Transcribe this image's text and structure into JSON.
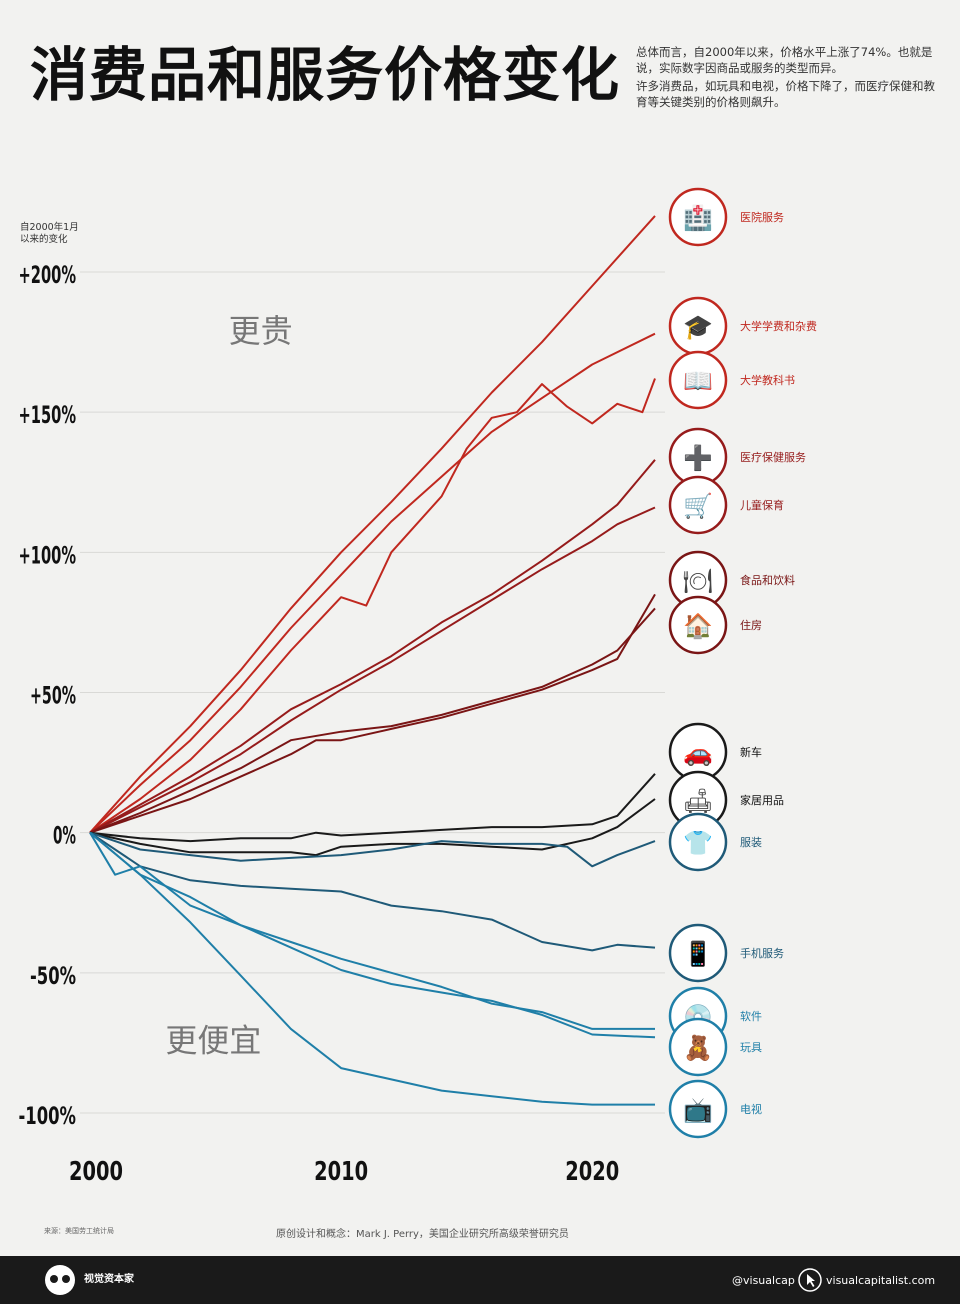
{
  "title": "消费品和服务价格变化",
  "subtitle": [
    "总体而言，自2000年以来，价格水平上涨了74%。也就是说，实际数字因商品或服务的类型而异。",
    "许多消费品，如玩具和电视，价格下降了，而医疗保健和教育等关键类别的价格则飙升。"
  ],
  "source": "来源：美国劳工统计局",
  "credit": "原创设计和概念：Mark J. Perry，美国企业研究所高级荣誉研究员",
  "footer": {
    "brand": "视觉资本家",
    "handle": "@visualcap",
    "site": "visualcapitalist.com"
  },
  "colors": {
    "red": "#c0281f",
    "darkred": "#7a1515",
    "black": "#1a1a1a",
    "teal": "#1f5a78",
    "blue": "#1f7fa8"
  },
  "chart_data": {
    "type": "line",
    "ylabel": "自2000年1月\n以来的变化",
    "ylim": [
      -100,
      200
    ],
    "yticks": [
      {
        "value": 200,
        "label": "+200%"
      },
      {
        "value": 150,
        "label": "+150%"
      },
      {
        "value": 100,
        "label": "+100%"
      },
      {
        "value": 50,
        "label": "+50%"
      },
      {
        "value": 0,
        "label": "0%"
      },
      {
        "value": -50,
        "label": "-50%"
      },
      {
        "value": -100,
        "label": "-100%"
      }
    ],
    "xticks": [
      {
        "value": 2000,
        "label": "2000"
      },
      {
        "value": 2010,
        "label": "2010"
      },
      {
        "value": 2020,
        "label": "2020"
      }
    ],
    "xlim": [
      2000,
      2022.5
    ],
    "annotations": [
      {
        "text": "更贵",
        "x": 2006,
        "y": 175
      },
      {
        "text": "更便宜",
        "x": 2003,
        "y": -78
      }
    ],
    "series": [
      {
        "name": "医院服务",
        "color": "#c0281f",
        "icon": "hospital-icon",
        "points": [
          [
            2000,
            0
          ],
          [
            2002,
            20
          ],
          [
            2004,
            38
          ],
          [
            2006,
            58
          ],
          [
            2008,
            80
          ],
          [
            2010,
            100
          ],
          [
            2012,
            118
          ],
          [
            2014,
            137
          ],
          [
            2016,
            157
          ],
          [
            2018,
            175
          ],
          [
            2020,
            195
          ],
          [
            2022.5,
            220
          ]
        ]
      },
      {
        "name": "大学学费和杂费",
        "color": "#c0281f",
        "icon": "graduation-cap-icon",
        "points": [
          [
            2000,
            0
          ],
          [
            2002,
            17
          ],
          [
            2004,
            33
          ],
          [
            2006,
            52
          ],
          [
            2008,
            73
          ],
          [
            2010,
            92
          ],
          [
            2012,
            111
          ],
          [
            2014,
            127
          ],
          [
            2016,
            143
          ],
          [
            2018,
            155
          ],
          [
            2020,
            167
          ],
          [
            2022.5,
            178
          ]
        ]
      },
      {
        "name": "大学教科书",
        "color": "#c0281f",
        "icon": "textbook-icon",
        "points": [
          [
            2000,
            0
          ],
          [
            2002,
            12
          ],
          [
            2004,
            26
          ],
          [
            2006,
            44
          ],
          [
            2008,
            65
          ],
          [
            2010,
            84
          ],
          [
            2011,
            81
          ],
          [
            2012,
            100
          ],
          [
            2014,
            120
          ],
          [
            2015,
            137
          ],
          [
            2016,
            148
          ],
          [
            2017,
            150
          ],
          [
            2018,
            160
          ],
          [
            2019,
            152
          ],
          [
            2020,
            146
          ],
          [
            2021,
            153
          ],
          [
            2022,
            150
          ],
          [
            2022.5,
            162
          ]
        ]
      },
      {
        "name": "医疗保健服务",
        "color": "#961b1b",
        "icon": "medical-kit-icon",
        "points": [
          [
            2000,
            0
          ],
          [
            2002,
            10
          ],
          [
            2004,
            20
          ],
          [
            2006,
            31
          ],
          [
            2008,
            44
          ],
          [
            2010,
            53
          ],
          [
            2012,
            63
          ],
          [
            2014,
            75
          ],
          [
            2016,
            85
          ],
          [
            2018,
            97
          ],
          [
            2020,
            110
          ],
          [
            2021,
            117
          ],
          [
            2022.5,
            133
          ]
        ]
      },
      {
        "name": "儿童保育",
        "color": "#961b1b",
        "icon": "stroller-icon",
        "points": [
          [
            2000,
            0
          ],
          [
            2002,
            9
          ],
          [
            2004,
            18
          ],
          [
            2006,
            28
          ],
          [
            2008,
            40
          ],
          [
            2010,
            51
          ],
          [
            2012,
            61
          ],
          [
            2014,
            72
          ],
          [
            2016,
            83
          ],
          [
            2018,
            94
          ],
          [
            2020,
            104
          ],
          [
            2021,
            110
          ],
          [
            2022.5,
            116
          ]
        ]
      },
      {
        "name": "食品和饮料",
        "color": "#7a1515",
        "icon": "food-icon",
        "points": [
          [
            2000,
            0
          ],
          [
            2002,
            6
          ],
          [
            2004,
            12
          ],
          [
            2006,
            20
          ],
          [
            2008,
            28
          ],
          [
            2009,
            33
          ],
          [
            2010,
            33
          ],
          [
            2012,
            37
          ],
          [
            2014,
            41
          ],
          [
            2016,
            46
          ],
          [
            2018,
            51
          ],
          [
            2020,
            58
          ],
          [
            2021,
            62
          ],
          [
            2022.5,
            85
          ]
        ]
      },
      {
        "name": "住房",
        "color": "#7a1515",
        "icon": "house-icon",
        "points": [
          [
            2000,
            0
          ],
          [
            2002,
            7
          ],
          [
            2004,
            15
          ],
          [
            2006,
            23
          ],
          [
            2008,
            33
          ],
          [
            2010,
            36
          ],
          [
            2012,
            38
          ],
          [
            2014,
            42
          ],
          [
            2016,
            47
          ],
          [
            2018,
            52
          ],
          [
            2020,
            60
          ],
          [
            2021,
            65
          ],
          [
            2022.5,
            80
          ]
        ]
      },
      {
        "name": "新车",
        "color": "#1a1a1a",
        "icon": "car-icon",
        "points": [
          [
            2000,
            0
          ],
          [
            2002,
            -2
          ],
          [
            2004,
            -3
          ],
          [
            2006,
            -2
          ],
          [
            2008,
            -2
          ],
          [
            2009,
            0
          ],
          [
            2010,
            -1
          ],
          [
            2012,
            0
          ],
          [
            2014,
            1
          ],
          [
            2016,
            2
          ],
          [
            2018,
            2
          ],
          [
            2020,
            3
          ],
          [
            2021,
            6
          ],
          [
            2022.5,
            21
          ]
        ]
      },
      {
        "name": "家居用品",
        "color": "#1a1a1a",
        "icon": "sofa-icon",
        "points": [
          [
            2000,
            0
          ],
          [
            2002,
            -4
          ],
          [
            2004,
            -7
          ],
          [
            2006,
            -7
          ],
          [
            2008,
            -7
          ],
          [
            2009,
            -8
          ],
          [
            2010,
            -5
          ],
          [
            2012,
            -4
          ],
          [
            2014,
            -4
          ],
          [
            2016,
            -5
          ],
          [
            2018,
            -6
          ],
          [
            2020,
            -2
          ],
          [
            2021,
            2
          ],
          [
            2022.5,
            12
          ]
        ]
      },
      {
        "name": "服装",
        "color": "#1f5a78",
        "icon": "shirt-icon",
        "points": [
          [
            2000,
            0
          ],
          [
            2002,
            -6
          ],
          [
            2004,
            -8
          ],
          [
            2006,
            -10
          ],
          [
            2008,
            -9
          ],
          [
            2010,
            -8
          ],
          [
            2012,
            -6
          ],
          [
            2014,
            -3
          ],
          [
            2016,
            -4
          ],
          [
            2018,
            -4
          ],
          [
            2019,
            -5
          ],
          [
            2020,
            -12
          ],
          [
            2021,
            -8
          ],
          [
            2022.5,
            -3
          ]
        ]
      },
      {
        "name": "手机服务",
        "color": "#1f5a78",
        "icon": "smartphone-icon",
        "points": [
          [
            2000,
            0
          ],
          [
            2002,
            -12
          ],
          [
            2004,
            -17
          ],
          [
            2006,
            -19
          ],
          [
            2008,
            -20
          ],
          [
            2010,
            -21
          ],
          [
            2012,
            -26
          ],
          [
            2014,
            -28
          ],
          [
            2016,
            -31
          ],
          [
            2018,
            -39
          ],
          [
            2020,
            -42
          ],
          [
            2021,
            -40
          ],
          [
            2022.5,
            -41
          ]
        ]
      },
      {
        "name": "软件",
        "color": "#1f7fa8",
        "icon": "software-icon",
        "points": [
          [
            2000,
            0
          ],
          [
            2001,
            -15
          ],
          [
            2002,
            -12
          ],
          [
            2004,
            -26
          ],
          [
            2006,
            -33
          ],
          [
            2008,
            -39
          ],
          [
            2010,
            -45
          ],
          [
            2012,
            -50
          ],
          [
            2014,
            -55
          ],
          [
            2016,
            -61
          ],
          [
            2018,
            -64
          ],
          [
            2020,
            -70
          ],
          [
            2022.5,
            -70
          ]
        ]
      },
      {
        "name": "玩具",
        "color": "#1f7fa8",
        "icon": "toys-icon",
        "points": [
          [
            2000,
            0
          ],
          [
            2002,
            -15
          ],
          [
            2004,
            -23
          ],
          [
            2006,
            -33
          ],
          [
            2008,
            -41
          ],
          [
            2010,
            -49
          ],
          [
            2012,
            -54
          ],
          [
            2014,
            -57
          ],
          [
            2016,
            -60
          ],
          [
            2018,
            -65
          ],
          [
            2020,
            -72
          ],
          [
            2022.5,
            -73
          ]
        ]
      },
      {
        "name": "电视",
        "color": "#1f7fa8",
        "icon": "tv-icon",
        "points": [
          [
            2000,
            0
          ],
          [
            2002,
            -15
          ],
          [
            2004,
            -32
          ],
          [
            2006,
            -51
          ],
          [
            2008,
            -70
          ],
          [
            2010,
            -84
          ],
          [
            2012,
            -88
          ],
          [
            2014,
            -92
          ],
          [
            2016,
            -94
          ],
          [
            2018,
            -96
          ],
          [
            2020,
            -97
          ],
          [
            2022.5,
            -97
          ]
        ]
      }
    ],
    "legend": "right-side labels"
  }
}
